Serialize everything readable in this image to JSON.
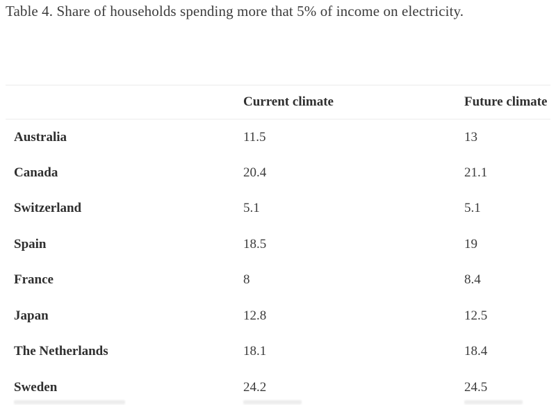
{
  "caption": "Table 4. Share of households spending more that 5% of income on electricity.",
  "table": {
    "columns": [
      "",
      "Current climate",
      "Future climate"
    ],
    "rows": [
      {
        "country": "Australia",
        "current": "11.5",
        "future": "13"
      },
      {
        "country": "Canada",
        "current": "20.4",
        "future": "21.1"
      },
      {
        "country": "Switzerland",
        "current": "5.1",
        "future": "5.1"
      },
      {
        "country": "Spain",
        "current": "18.5",
        "future": "19"
      },
      {
        "country": "France",
        "current": "8",
        "future": "8.4"
      },
      {
        "country": "Japan",
        "current": "12.8",
        "future": "12.5"
      },
      {
        "country": "The Netherlands",
        "current": "18.1",
        "future": "18.4"
      },
      {
        "country": "Sweden",
        "current": "24.2",
        "future": "24.5"
      }
    ]
  },
  "colors": {
    "text": "#3c3c3c",
    "heading_text": "#2f2f2f",
    "divider": "#ebebeb",
    "background": "#ffffff"
  }
}
